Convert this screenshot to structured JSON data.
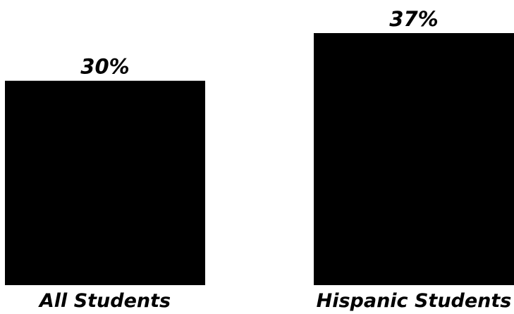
{
  "chart_data": {
    "type": "bar",
    "categories": [
      "All Students",
      "Hispanic Students"
    ],
    "values": [
      30,
      37
    ],
    "value_labels": [
      "30%",
      "37%"
    ],
    "unit": "%",
    "bar_color": "#000000",
    "background": "#ffffff",
    "grid": false,
    "legend": "none",
    "ylim": [
      0,
      37
    ]
  }
}
